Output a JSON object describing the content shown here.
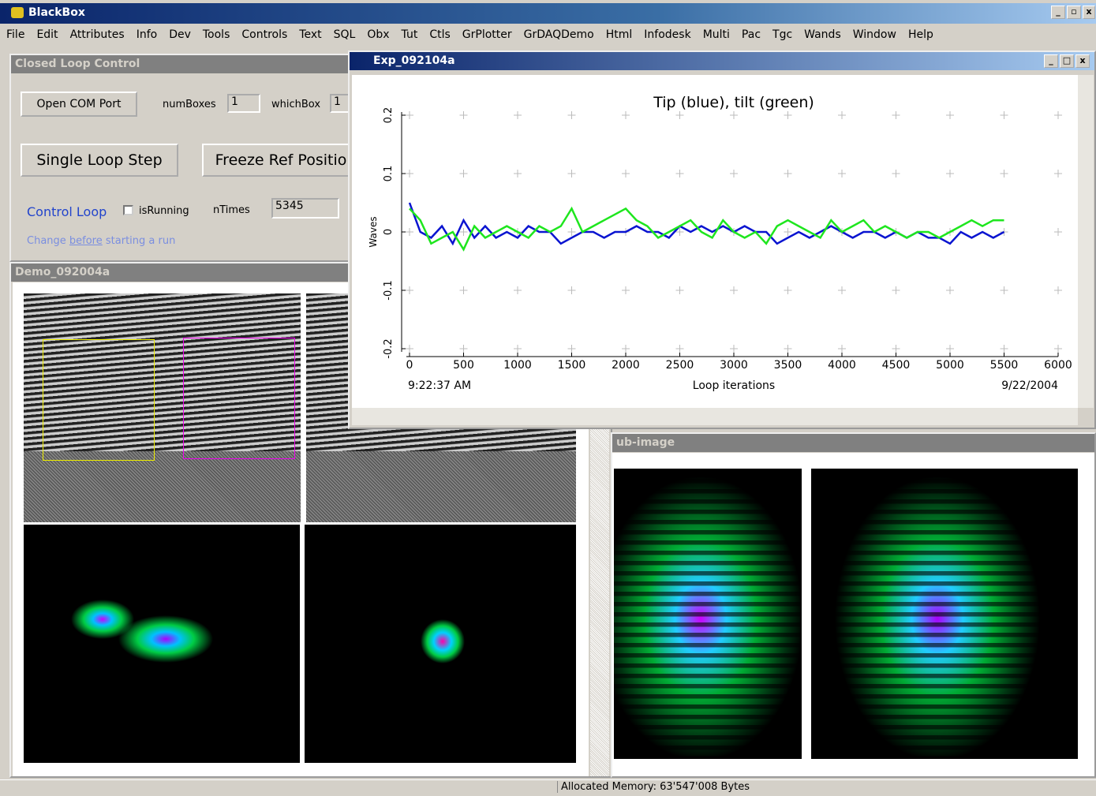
{
  "app": {
    "title": "BlackBox"
  },
  "menu": [
    "File",
    "Edit",
    "Attributes",
    "Info",
    "Dev",
    "Tools",
    "Controls",
    "Text",
    "SQL",
    "Obx",
    "Tut",
    "Ctls",
    "GrPlotter",
    "GrDAQDemo",
    "Html",
    "Infodesk",
    "Multi",
    "Pac",
    "Tgc",
    "Wands",
    "Window",
    "Help"
  ],
  "closed_loop": {
    "title": "Closed Loop Control",
    "open_com_port": "Open COM Port",
    "num_boxes_label": "numBoxes",
    "num_boxes": "1",
    "which_box_label": "whichBox",
    "which_box": "1",
    "single_loop_step": "Single Loop Step",
    "freeze_ref": "Freeze Ref Positio",
    "control_loop": "Control Loop",
    "is_running": "isRunning",
    "n_times_label": "nTimes",
    "n_times": "5345",
    "note": [
      "Change ",
      "before",
      " starting a run"
    ]
  },
  "demo": {
    "title": "Demo_092004a"
  },
  "sub_image": {
    "title": "ub-image"
  },
  "exp": {
    "title": "Exp_092104a"
  },
  "chart_data": {
    "type": "line",
    "title": "Tip (blue), tilt (green)",
    "x_label": "Loop iterations",
    "y_label": "Waves",
    "start_time": "9:22:37 AM",
    "date": "9/22/2004",
    "x": [
      0,
      100,
      200,
      300,
      400,
      500,
      600,
      700,
      800,
      900,
      1000,
      1100,
      1200,
      1300,
      1400,
      1500,
      1600,
      1700,
      1800,
      1900,
      2000,
      2100,
      2200,
      2300,
      2400,
      2500,
      2600,
      2700,
      2800,
      2900,
      3000,
      3100,
      3200,
      3300,
      3400,
      3500,
      3600,
      3700,
      3800,
      3900,
      4000,
      4100,
      4200,
      4300,
      4400,
      4500,
      4600,
      4700,
      4800,
      4900,
      5000,
      5100,
      5200,
      5300,
      5400,
      5500
    ],
    "series": [
      {
        "color": "#0a14d0",
        "values": [
          0.05,
          0.0,
          -0.01,
          0.01,
          -0.02,
          0.02,
          -0.01,
          0.01,
          -0.01,
          0.0,
          -0.01,
          0.01,
          0.0,
          0.0,
          -0.02,
          -0.01,
          0.0,
          0.0,
          -0.01,
          0.0,
          0.0,
          0.01,
          0.0,
          0.0,
          -0.01,
          0.01,
          0.0,
          0.01,
          0.0,
          0.01,
          0.0,
          0.01,
          0.0,
          0.0,
          -0.02,
          -0.01,
          0.0,
          -0.01,
          0.0,
          0.01,
          0.0,
          -0.01,
          0.0,
          0.0,
          -0.01,
          0.0,
          -0.01,
          0.0,
          -0.01,
          -0.01,
          -0.02,
          0.0,
          -0.01,
          0.0,
          -0.01,
          0.0
        ]
      },
      {
        "color": "#1ee61e",
        "values": [
          0.04,
          0.02,
          -0.02,
          -0.01,
          0.0,
          -0.03,
          0.01,
          -0.01,
          0.0,
          0.01,
          0.0,
          -0.01,
          0.01,
          0.0,
          0.01,
          0.04,
          0.0,
          0.01,
          0.02,
          0.03,
          0.04,
          0.02,
          0.01,
          -0.01,
          0.0,
          0.01,
          0.02,
          0.0,
          -0.01,
          0.02,
          0.0,
          -0.01,
          0.0,
          -0.02,
          0.01,
          0.02,
          0.01,
          0.0,
          -0.01,
          0.02,
          0.0,
          0.01,
          0.02,
          0.0,
          0.01,
          0.0,
          -0.01,
          0.0,
          0.0,
          -0.01,
          0.0,
          0.01,
          0.02,
          0.01,
          0.02,
          0.02
        ]
      }
    ],
    "xlim": [
      0,
      6000
    ],
    "xticks": [
      0,
      500,
      1000,
      1500,
      2000,
      2500,
      3000,
      3500,
      4000,
      4500,
      5000,
      5500,
      6000
    ],
    "ylim": [
      -0.2,
      0.2
    ],
    "yticks": [
      -0.2,
      -0.1,
      0,
      0.1,
      0.2
    ],
    "grid": true
  },
  "status_bar": {
    "memory": "Allocated Memory: 63'547'008 Bytes"
  }
}
